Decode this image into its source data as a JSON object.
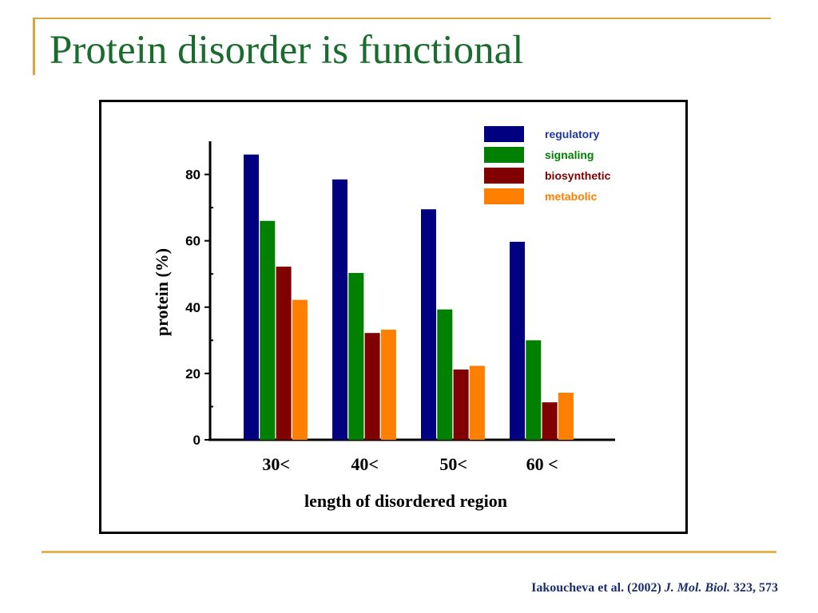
{
  "slide": {
    "title": "Protein disorder is functional"
  },
  "citation": {
    "authors": "Iakoucheva et al. (2002)",
    "journal": "J. Mol. Biol.",
    "volume_pages": "323, 573"
  },
  "chart_data": {
    "type": "bar",
    "title": "",
    "xlabel": "length of disordered region",
    "ylabel": "protein (%)",
    "categories": [
      "30<",
      "40<",
      "50<",
      "60 <"
    ],
    "ylim": [
      0,
      90
    ],
    "yticks": [
      0,
      20,
      40,
      60,
      80
    ],
    "grid": false,
    "legend_position": "top-right",
    "series": [
      {
        "name": "regulatory",
        "color": "#000080",
        "values": [
          86,
          78.5,
          69.5,
          59.7
        ]
      },
      {
        "name": "signaling",
        "color": "#008000",
        "values": [
          66,
          50.3,
          39.3,
          30
        ]
      },
      {
        "name": "biosynthetic",
        "color": "#800000",
        "values": [
          52.2,
          32.2,
          21.2,
          11.3
        ]
      },
      {
        "name": "metabolic",
        "color": "#ff8000",
        "values": [
          42.2,
          33.2,
          22.3,
          14.2
        ]
      }
    ]
  }
}
